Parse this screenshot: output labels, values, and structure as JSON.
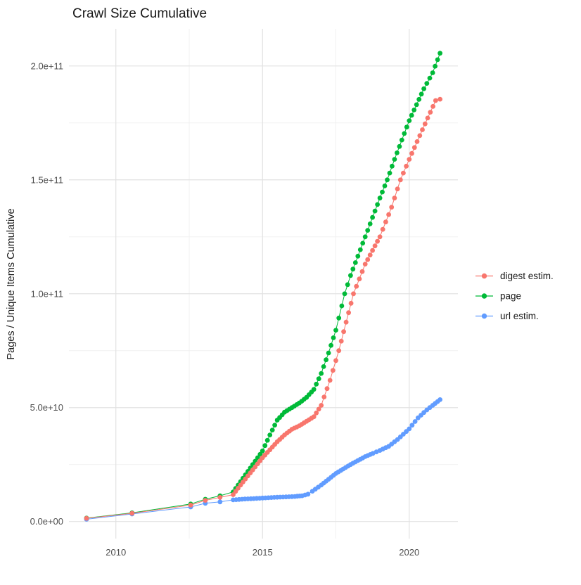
{
  "title": "Crawl Size Cumulative",
  "chart_data": {
    "type": "line",
    "title": "Crawl Size Cumulative",
    "xlabel": "",
    "ylabel": "Pages / Unique Items Cumulative",
    "grid": true,
    "legend_position": "right-center",
    "x_range": [
      2008.4,
      2021.66
    ],
    "y_range": [
      -7500000000,
      216300000000
    ],
    "x_ticks": [
      {
        "value": 2010,
        "label": "2010"
      },
      {
        "value": 2015,
        "label": "2015"
      },
      {
        "value": 2020,
        "label": "2020"
      }
    ],
    "x_minor": [
      2012.5,
      2017.5
    ],
    "y_ticks": [
      {
        "value": 0,
        "label": "0.0e+00"
      },
      {
        "value": 50000000000.0,
        "label": "5.0e+10"
      },
      {
        "value": 100000000000.0,
        "label": "1.0e+11"
      },
      {
        "value": 150000000000.0,
        "label": "1.5e+11"
      },
      {
        "value": 200000000000.0,
        "label": "2.0e+11"
      }
    ],
    "y_minor": [
      25000000000.0,
      75000000000.0,
      125000000000.0,
      175000000000.0
    ],
    "point_radius_px": 3.4,
    "dense_from_year": 2013.9,
    "dense_points_per_year": 12,
    "draw_order": [
      "page",
      "url estim.",
      "digest estim."
    ],
    "legend_order": [
      "digest estim.",
      "page",
      "url estim."
    ],
    "series": [
      {
        "name": "digest estim.",
        "color": "#F8766D",
        "points": [
          [
            2009.0,
            1400000000.0
          ],
          [
            2010.55,
            3600000000.0
          ],
          [
            2012.55,
            7200000000.0
          ],
          [
            2013.05,
            9300000000.0
          ],
          [
            2013.55,
            10600000000.0
          ],
          [
            2014.0,
            11800000000.0
          ],
          [
            2014.25,
            16000000000.0
          ],
          [
            2014.5,
            20000000000.0
          ],
          [
            2014.75,
            24000000000.0
          ],
          [
            2015.0,
            28000000000.0
          ],
          [
            2015.25,
            31500000000.0
          ],
          [
            2015.5,
            35000000000.0
          ],
          [
            2015.75,
            38000000000.0
          ],
          [
            2016.0,
            40500000000.0
          ],
          [
            2016.25,
            42000000000.0
          ],
          [
            2016.5,
            44000000000.0
          ],
          [
            2016.75,
            46000000000.0
          ],
          [
            2017.0,
            51000000000.0
          ],
          [
            2017.3,
            62000000000.0
          ],
          [
            2017.6,
            75000000000.0
          ],
          [
            2018.1,
            100000000000.0
          ],
          [
            2018.5,
            113000000000.0
          ],
          [
            2019.0,
            125000000000.0
          ],
          [
            2019.4,
            138000000000.0
          ],
          [
            2019.7,
            150000000000.0
          ],
          [
            2020.0,
            159000000000.0
          ],
          [
            2020.45,
            172000000000.0
          ],
          [
            2020.9,
            184800000000.0
          ],
          [
            2021.05,
            185400000000.0
          ]
        ]
      },
      {
        "name": "page",
        "color": "#00BA38",
        "points": [
          [
            2009.0,
            1500000000.0
          ],
          [
            2010.55,
            3800000000.0
          ],
          [
            2012.55,
            7700000000.0
          ],
          [
            2013.05,
            9800000000.0
          ],
          [
            2013.55,
            11300000000.0
          ],
          [
            2014.0,
            13000000000.0
          ],
          [
            2014.25,
            17500000000.0
          ],
          [
            2014.5,
            22000000000.0
          ],
          [
            2014.75,
            26500000000.0
          ],
          [
            2015.0,
            31000000000.0
          ],
          [
            2015.25,
            38000000000.0
          ],
          [
            2015.5,
            44500000000.0
          ],
          [
            2015.75,
            48000000000.0
          ],
          [
            2016.0,
            50000000000.0
          ],
          [
            2016.25,
            52000000000.0
          ],
          [
            2016.5,
            54500000000.0
          ],
          [
            2016.75,
            58000000000.0
          ],
          [
            2017.0,
            65000000000.0
          ],
          [
            2017.25,
            74000000000.0
          ],
          [
            2017.5,
            84000000000.0
          ],
          [
            2017.8,
            100000000000.0
          ],
          [
            2018.0,
            108000000000.0
          ],
          [
            2018.5,
            125000000000.0
          ],
          [
            2019.0,
            142000000000.0
          ],
          [
            2019.25,
            150000000000.0
          ],
          [
            2019.5,
            159000000000.0
          ],
          [
            2020.0,
            176000000000.0
          ],
          [
            2020.5,
            190000000000.0
          ],
          [
            2020.8,
            197000000000.0
          ],
          [
            2021.05,
            205600000000.0
          ]
        ]
      },
      {
        "name": "url estim.",
        "color": "#619CFF",
        "points": [
          [
            2009.0,
            1000000000.0
          ],
          [
            2010.55,
            3300000000.0
          ],
          [
            2012.55,
            6400000000.0
          ],
          [
            2013.05,
            8000000000.0
          ],
          [
            2013.55,
            8600000000.0
          ],
          [
            2014.0,
            9500000000.0
          ],
          [
            2014.3,
            9800000000.0
          ],
          [
            2014.6,
            10000000000.0
          ],
          [
            2015.0,
            10300000000.0
          ],
          [
            2015.4,
            10600000000.0
          ],
          [
            2015.8,
            10800000000.0
          ],
          [
            2016.1,
            11000000000.0
          ],
          [
            2016.35,
            11300000000.0
          ],
          [
            2016.55,
            12000000000.0
          ],
          [
            2016.7,
            13300000000.0
          ],
          [
            2017.0,
            16000000000.0
          ],
          [
            2017.5,
            21100000000.0
          ],
          [
            2018.0,
            25000000000.0
          ],
          [
            2018.5,
            28500000000.0
          ],
          [
            2018.76,
            29900000000.0
          ],
          [
            2019.0,
            31200000000.0
          ],
          [
            2019.3,
            33000000000.0
          ],
          [
            2019.6,
            36000000000.0
          ],
          [
            2020.0,
            40700000000.0
          ],
          [
            2020.3,
            45500000000.0
          ],
          [
            2020.6,
            49000000000.0
          ],
          [
            2020.8,
            51000000000.0
          ],
          [
            2021.05,
            53500000000.0
          ]
        ]
      }
    ],
    "colors": {
      "grid_major": "#e2e2e2",
      "grid_minor": "#f0f0f0",
      "tick_text": "#4d4d4d",
      "title_text": "#1a1a1a"
    }
  }
}
